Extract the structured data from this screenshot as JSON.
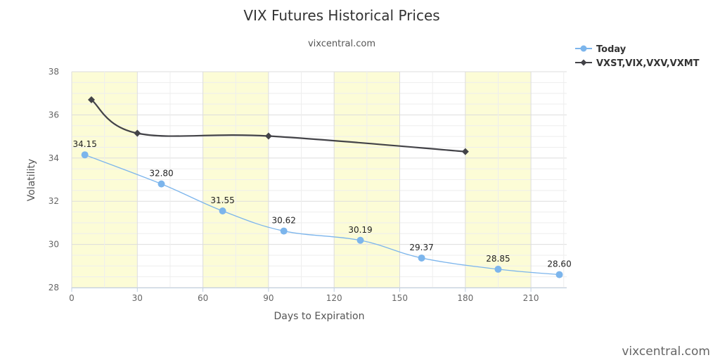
{
  "chart_data": {
    "type": "line",
    "title": "VIX Futures Historical Prices",
    "subtitle": "vixcentral.com",
    "xlabel": "Days to Expiration",
    "ylabel": "Volatility",
    "xlim": [
      0,
      225
    ],
    "ylim": [
      28,
      38
    ],
    "x_ticks": [
      0,
      30,
      60,
      90,
      120,
      150,
      180,
      210
    ],
    "y_ticks": [
      28,
      30,
      32,
      34,
      36,
      38
    ],
    "shaded_bands": [
      [
        0,
        30
      ],
      [
        60,
        90
      ],
      [
        120,
        150
      ],
      [
        180,
        210
      ]
    ],
    "series": [
      {
        "name": "Today",
        "color": "#7cb5ec",
        "marker": "circle",
        "x": [
          6,
          41,
          69,
          97,
          132,
          160,
          195,
          223
        ],
        "values": [
          34.15,
          32.8,
          31.55,
          30.62,
          30.19,
          29.37,
          28.85,
          28.6
        ],
        "labels": [
          "34.15",
          "32.80",
          "31.55",
          "30.62",
          "30.19",
          "29.37",
          "28.85",
          "28.60"
        ]
      },
      {
        "name": "VXST,VIX,VXV,VXMT",
        "color": "#434348",
        "marker": "diamond",
        "x": [
          9,
          30,
          90,
          180
        ],
        "values": [
          36.7,
          35.15,
          35.02,
          34.3
        ]
      }
    ],
    "legend_position": "top-right",
    "grid": true
  },
  "credit": "vixcentral.com"
}
